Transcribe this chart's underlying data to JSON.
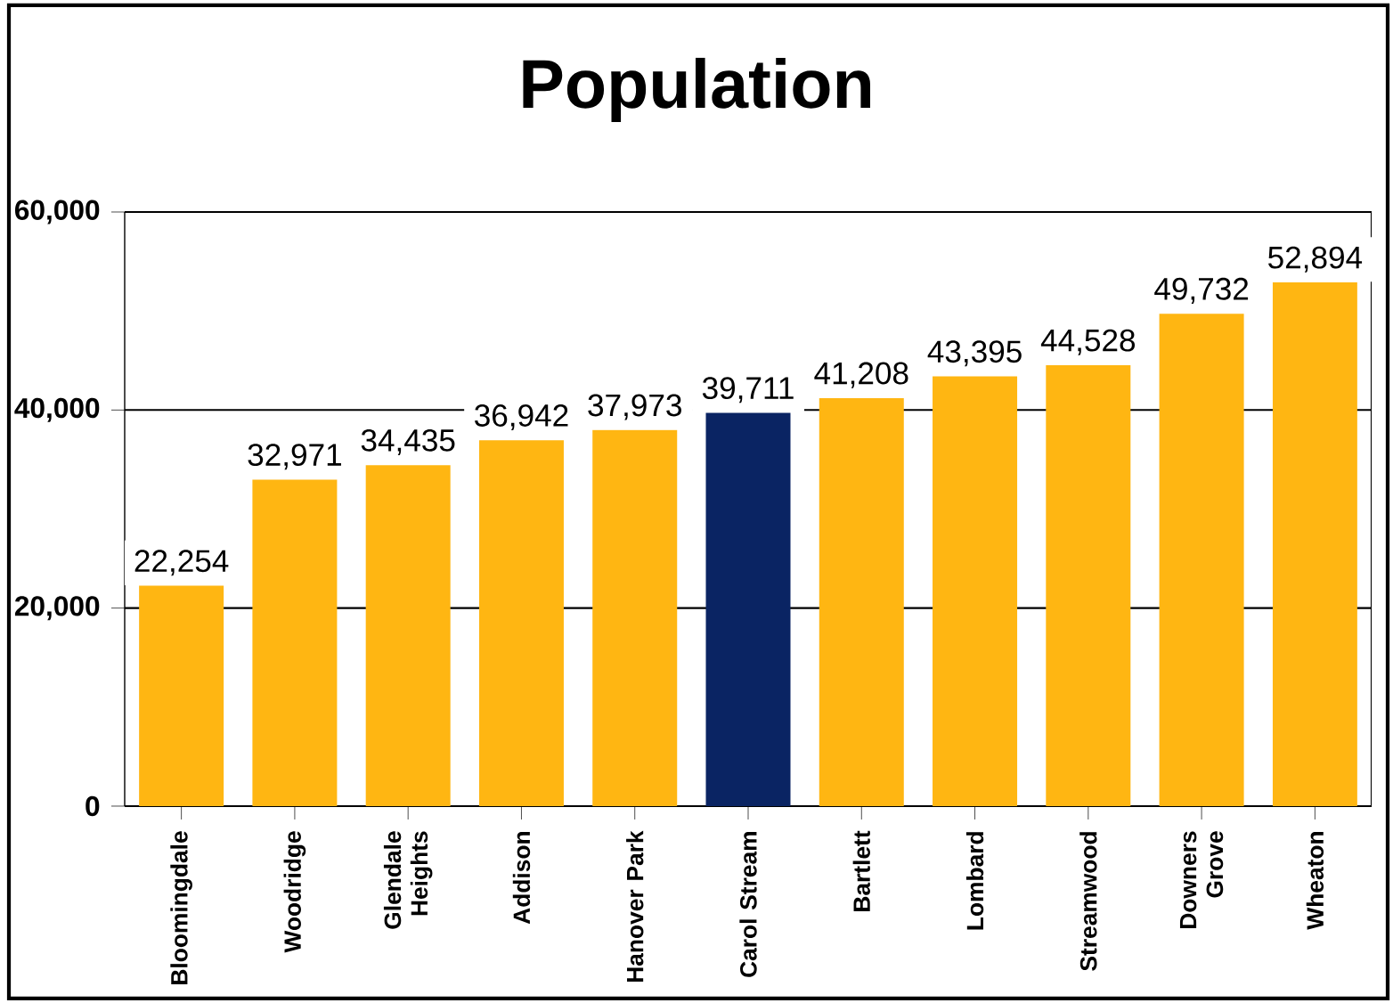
{
  "chart_data": {
    "type": "bar",
    "title": "Population",
    "categories": [
      "Bloomingdale",
      "Woodridge",
      "Glendale Heights",
      "Addison",
      "Hanover Park",
      "Carol Stream",
      "Bartlett",
      "Lombard",
      "Streamwood",
      "Downers Grove",
      "Wheaton"
    ],
    "values": [
      22254,
      32971,
      34435,
      36942,
      37973,
      39711,
      41208,
      43395,
      44528,
      49732,
      52894
    ],
    "value_labels": [
      "22,254",
      "32,971",
      "34,435",
      "36,942",
      "37,973",
      "39,711",
      "41,208",
      "43,395",
      "44,528",
      "49,732",
      "52,894"
    ],
    "colors": [
      "#ffb612",
      "#ffb612",
      "#ffb612",
      "#ffb612",
      "#ffb612",
      "#0a2463",
      "#ffb612",
      "#ffb612",
      "#ffb612",
      "#ffb612",
      "#ffb612"
    ],
    "ylim": [
      0,
      60000
    ],
    "yticks": [
      {
        "value": 0,
        "label": "0"
      },
      {
        "value": 20000,
        "label": "20,000"
      },
      {
        "value": 40000,
        "label": "40,000"
      },
      {
        "value": 60000,
        "label": "60,000"
      }
    ],
    "grid": "y"
  }
}
